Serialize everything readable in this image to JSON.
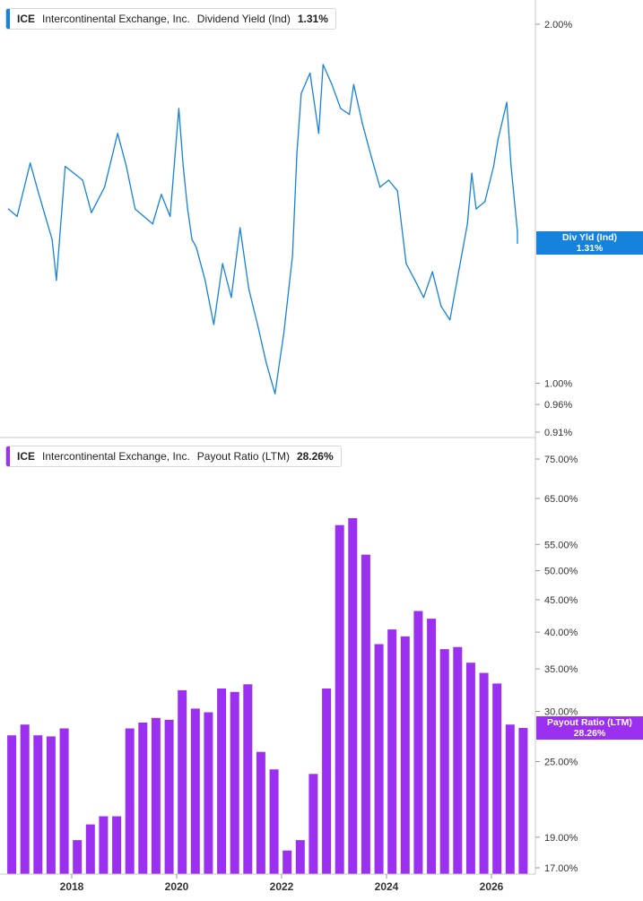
{
  "theme": {
    "line_color": "#1582dc",
    "bar_color": "#9b30f0"
  },
  "top_panel": {
    "legend": {
      "ticker": "ICE",
      "company": "Intercontinental Exchange, Inc.",
      "metric": "Dividend Yield (Ind)",
      "value": "1.31%"
    },
    "badge": {
      "label": "Div Yld (Ind)",
      "value": "1.31%"
    },
    "y_ticks": [
      "2.00%",
      "1.00%",
      "0.96%",
      "0.91%"
    ]
  },
  "bottom_panel": {
    "legend": {
      "ticker": "ICE",
      "company": "Intercontinental Exchange, Inc.",
      "metric": "Payout Ratio (LTM)",
      "value": "28.26%"
    },
    "badge": {
      "label": "Payout Ratio (LTM)",
      "value": "28.26%"
    },
    "y_ticks": [
      "75.00%",
      "65.00%",
      "55.00%",
      "50.00%",
      "45.00%",
      "40.00%",
      "35.00%",
      "30.00%",
      "25.00%",
      "19.00%",
      "17.00%"
    ]
  },
  "x_ticks": [
    "2018",
    "2020",
    "2022",
    "2024",
    "2026"
  ],
  "chart_data": [
    {
      "type": "line",
      "series": [
        {
          "name": "Dividend Yield (Ind)",
          "x": [
            "2016-10",
            "2016-12",
            "2017-03",
            "2017-05",
            "2017-08",
            "2017-09",
            "2017-11",
            "2018-01",
            "2018-03",
            "2018-05",
            "2018-08",
            "2018-11",
            "2019-01",
            "2019-03",
            "2019-05",
            "2019-07",
            "2019-09",
            "2019-11",
            "2020-01",
            "2020-02",
            "2020-03",
            "2020-04",
            "2020-05",
            "2020-07",
            "2020-09",
            "2020-11",
            "2021-01",
            "2021-03",
            "2021-05",
            "2021-07",
            "2021-09",
            "2021-11",
            "2021-12",
            "2022-01",
            "2022-03",
            "2022-04",
            "2022-05",
            "2022-07",
            "2022-09",
            "2022-10",
            "2022-12",
            "2023-02",
            "2023-04",
            "2023-05",
            "2023-07",
            "2023-09",
            "2023-11",
            "2024-01",
            "2024-03",
            "2024-05",
            "2024-07",
            "2024-09",
            "2024-11",
            "2025-01",
            "2025-03",
            "2025-05",
            "2025-07",
            "2025-08",
            "2025-09",
            "2025-11",
            "2026-01",
            "2026-02",
            "2026-04",
            "2026-05",
            "2026-07",
            "2026-08"
          ],
          "values": [
            1.4,
            1.38,
            1.53,
            1.44,
            1.32,
            1.22,
            1.52,
            1.5,
            1.48,
            1.39,
            1.46,
            1.62,
            1.52,
            1.4,
            1.38,
            1.36,
            1.44,
            1.38,
            1.7,
            1.52,
            1.4,
            1.32,
            1.3,
            1.22,
            1.12,
            1.26,
            1.18,
            1.35,
            1.2,
            1.12,
            1.04,
            0.98,
            1.04,
            1.1,
            1.28,
            1.56,
            1.75,
            1.82,
            1.62,
            1.85,
            1.78,
            1.7,
            1.68,
            1.78,
            1.65,
            1.55,
            1.46,
            1.48,
            1.45,
            1.26,
            1.22,
            1.18,
            1.24,
            1.16,
            1.13,
            1.24,
            1.36,
            1.5,
            1.4,
            1.42,
            1.52,
            1.6,
            1.72,
            1.52,
            1.34,
            1.31
          ],
          "ylim": [
            0.91,
            2.05
          ],
          "scale": "log"
        }
      ]
    },
    {
      "type": "bar",
      "series": [
        {
          "name": "Payout Ratio (LTM)",
          "x": [
            "2016-12",
            "2017-03",
            "2017-06",
            "2017-09",
            "2017-12",
            "2018-03",
            "2018-06",
            "2018-09",
            "2018-12",
            "2019-03",
            "2019-06",
            "2019-09",
            "2019-12",
            "2020-03",
            "2020-06",
            "2020-09",
            "2020-12",
            "2021-03",
            "2021-06",
            "2021-09",
            "2021-12",
            "2022-03",
            "2022-06",
            "2022-09",
            "2022-12",
            "2023-03",
            "2023-06",
            "2023-09",
            "2023-12",
            "2024-03",
            "2024-06",
            "2024-09",
            "2024-12",
            "2025-03",
            "2025-06",
            "2025-09",
            "2025-12",
            "2026-03",
            "2026-06",
            "2026-09"
          ],
          "values": [
            27.5,
            28.6,
            27.5,
            27.4,
            28.2,
            18.8,
            19.9,
            20.5,
            20.5,
            28.2,
            28.8,
            29.3,
            29.1,
            32.4,
            30.3,
            29.9,
            32.6,
            32.2,
            33.1,
            25.9,
            24.3,
            18.1,
            18.8,
            23.9,
            32.6,
            59.0,
            60.5,
            53.0,
            38.3,
            40.4,
            39.4,
            43.2,
            42.0,
            37.6,
            37.9,
            35.8,
            34.5,
            33.2,
            28.6,
            28.26
          ],
          "ylim": [
            16.6,
            76
          ],
          "scale": "log"
        }
      ]
    }
  ]
}
